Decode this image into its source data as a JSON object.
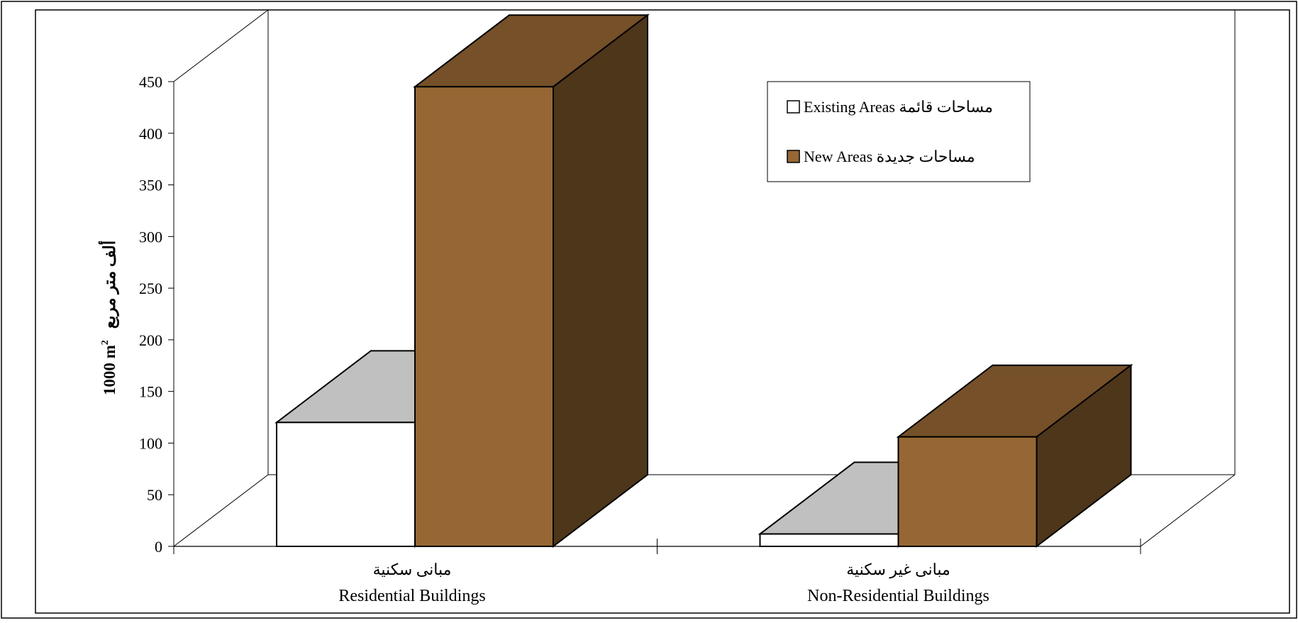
{
  "chart_data": {
    "type": "bar",
    "three_d": true,
    "title": "",
    "ylabel_en": "1000 m",
    "ylabel_sup": "2",
    "ylabel_ar": "ألف متر مربع",
    "ylim": [
      0,
      450
    ],
    "yticks": [
      "0",
      "50",
      "100",
      "150",
      "200",
      "250",
      "300",
      "350",
      "400",
      "450"
    ],
    "categories": [
      {
        "ar": "مبانى سكنية",
        "en": "Residential Buildings"
      },
      {
        "ar": "مبانى غير سكنية",
        "en": "Non-Residential Buildings"
      }
    ],
    "series": [
      {
        "name": "Existing Areas",
        "name_ar": "مساحات  قائمة",
        "values": [
          120,
          12
        ],
        "color": "#ffffff"
      },
      {
        "name": "New Areas",
        "name_ar": "مساحات  جديدة",
        "values": [
          445,
          106
        ],
        "color": "#966734"
      }
    ],
    "legend_position": "top-right",
    "grid": false
  }
}
